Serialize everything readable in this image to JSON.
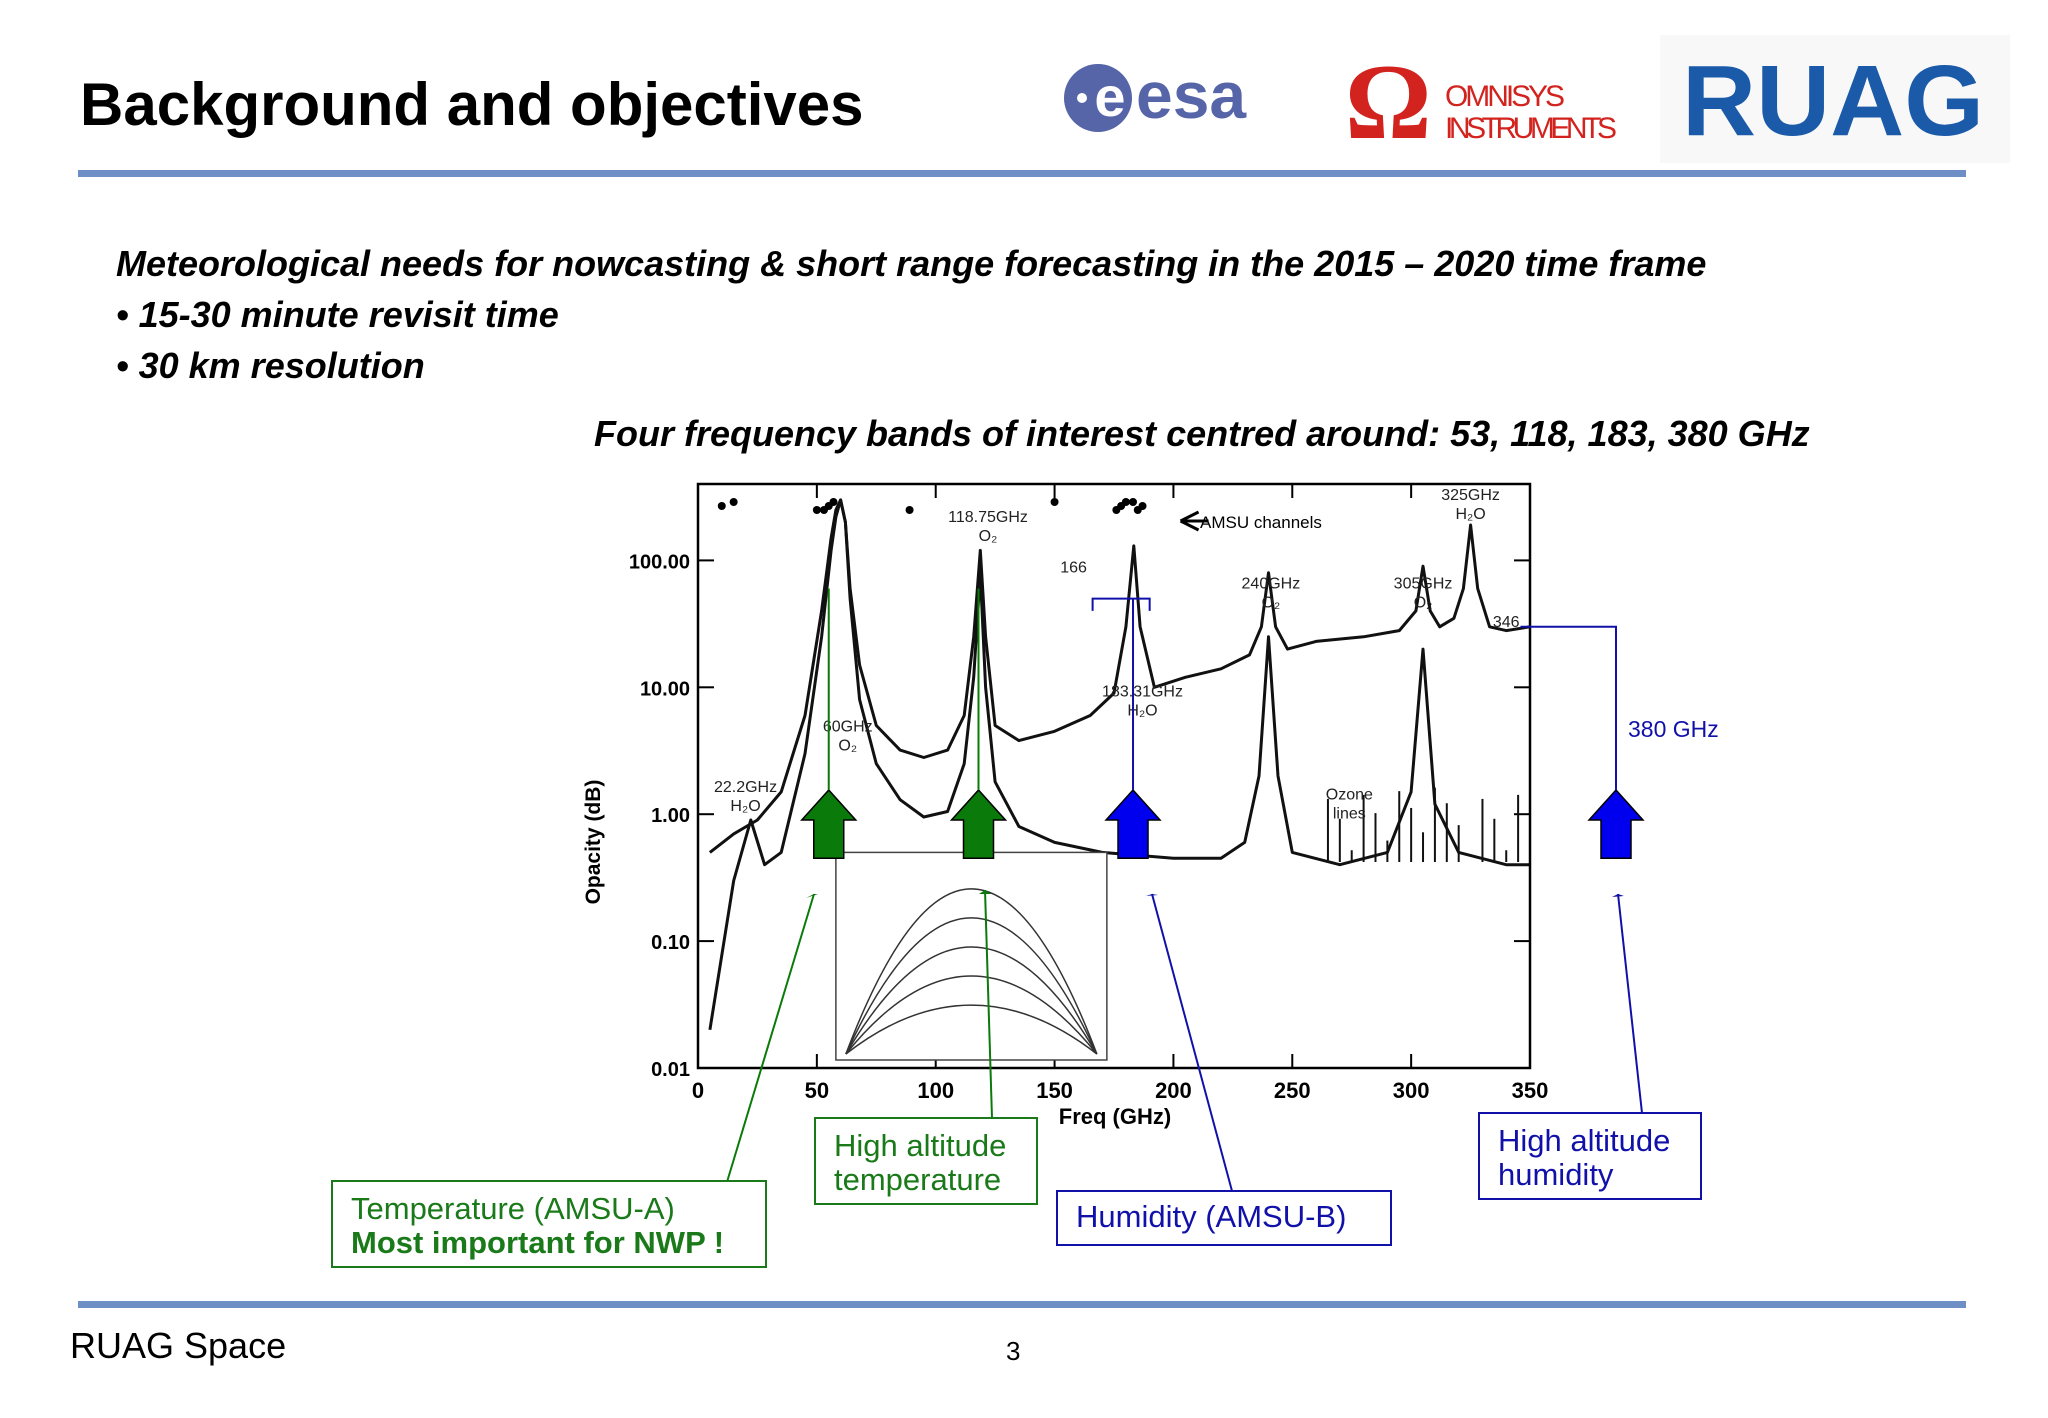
{
  "slide": {
    "title": "Background and objectives",
    "heading": "Meteorological needs for nowcasting & short range forecasting in the 2015 – 2020 time frame",
    "bullets": [
      "• 15-30 minute revisit time",
      "• 30 km resolution"
    ],
    "subheading": "Four frequency bands of interest centred around: 53, 118, 183, 380 GHz"
  },
  "logos": {
    "esa": "esa",
    "omnisys_line1": "OMNISYS",
    "omnisys_line2": "INSTRUMENTS",
    "ruag": "RUAG"
  },
  "colors": {
    "rule": "#6d8fc5",
    "green": "#1a7a1a",
    "blue": "#1111aa",
    "ruag_blue": "#1a5aa8",
    "omnisys_red": "#d2231e",
    "esa_blue": "#5565a8"
  },
  "chart_data": {
    "type": "line",
    "xlabel": "Freq (GHz)",
    "ylabel": "Opacity (dB)",
    "xlim": [
      0,
      350
    ],
    "ylim": [
      0.01,
      400
    ],
    "yscale": "log",
    "x_ticks": [
      0,
      50,
      100,
      150,
      200,
      250,
      300,
      350
    ],
    "y_ticks": [
      {
        "value": 0.01,
        "label": "0.01"
      },
      {
        "value": 0.1,
        "label": "0.10"
      },
      {
        "value": 1,
        "label": "1.00"
      },
      {
        "value": 10,
        "label": "10.00"
      },
      {
        "value": 100,
        "label": "100.00"
      }
    ],
    "series": [
      {
        "style": "upper",
        "x": [
          5,
          15,
          25,
          35,
          45,
          52,
          56,
          58,
          60,
          62,
          64,
          68,
          75,
          85,
          95,
          105,
          112,
          116,
          118.75,
          121,
          125,
          135,
          150,
          165,
          175,
          180,
          183.31,
          186,
          192,
          205,
          220,
          232,
          237,
          240,
          243,
          248,
          260,
          280,
          295,
          302,
          305,
          308,
          312,
          318,
          322,
          325,
          328,
          333,
          340,
          350
        ],
        "y": [
          0.5,
          0.7,
          0.9,
          1.5,
          6,
          40,
          150,
          250,
          300,
          200,
          60,
          15,
          5,
          3.2,
          2.8,
          3.2,
          6,
          25,
          120,
          25,
          5,
          3.8,
          4.5,
          6,
          9,
          30,
          130,
          30,
          10,
          12,
          14,
          18,
          30,
          80,
          30,
          20,
          23,
          25,
          28,
          40,
          90,
          40,
          30,
          35,
          60,
          190,
          60,
          30,
          28,
          30
        ]
      },
      {
        "style": "lower",
        "x": [
          5,
          15,
          22.2,
          28,
          35,
          45,
          52,
          56,
          58,
          60,
          62,
          64,
          68,
          75,
          85,
          95,
          105,
          112,
          116,
          118.75,
          121,
          125,
          135,
          150,
          170,
          200,
          220,
          230,
          236,
          240,
          244,
          250,
          270,
          290,
          300,
          305,
          310,
          320,
          340,
          350
        ],
        "y": [
          0.02,
          0.3,
          0.9,
          0.4,
          0.5,
          3,
          25,
          120,
          220,
          300,
          200,
          50,
          8,
          2.5,
          1.3,
          0.95,
          1.05,
          2.5,
          12,
          80,
          10,
          1.8,
          0.8,
          0.6,
          0.5,
          0.45,
          0.45,
          0.6,
          2,
          25,
          2,
          0.5,
          0.4,
          0.5,
          1.5,
          20,
          1.2,
          0.5,
          0.4,
          0.4
        ]
      }
    ],
    "annotations": [
      {
        "label": "22.2GHz",
        "sub": "H₂O",
        "x": 22.2
      },
      {
        "label": "60GHz",
        "sub": "O₂",
        "x": 60
      },
      {
        "label": "118.75GHz",
        "sub": "O₂",
        "x": 118.75
      },
      {
        "label": "183.31GHz",
        "sub": "H₂O",
        "x": 183.31
      },
      {
        "label": "240GHz",
        "sub": "O₂",
        "x": 240
      },
      {
        "label": "305GHz",
        "sub": "O₂",
        "x": 305
      },
      {
        "label": "325GHz",
        "sub": "H₂O",
        "x": 325
      },
      {
        "label": "Ozone",
        "sub": "lines",
        "x": 275
      },
      {
        "label": "166",
        "x": 166
      },
      {
        "label": "346",
        "x": 346
      }
    ],
    "amsu_label": "AMSU channels",
    "side_label": "380 GHz",
    "arrows": [
      {
        "x": 55,
        "color": "green"
      },
      {
        "x": 118,
        "color": "green"
      },
      {
        "x": 183,
        "color": "blue"
      },
      {
        "x": 380,
        "color": "blue"
      }
    ]
  },
  "callouts": {
    "temperature_line1": "Temperature (AMSU-A)",
    "temperature_line2": "Most important for NWP !",
    "high_alt_temp": "High altitude temperature",
    "humidity": "Humidity (AMSU-B)",
    "high_alt_humidity": "High altitude humidity"
  },
  "footer": {
    "org": "RUAG Space",
    "page": "3"
  }
}
